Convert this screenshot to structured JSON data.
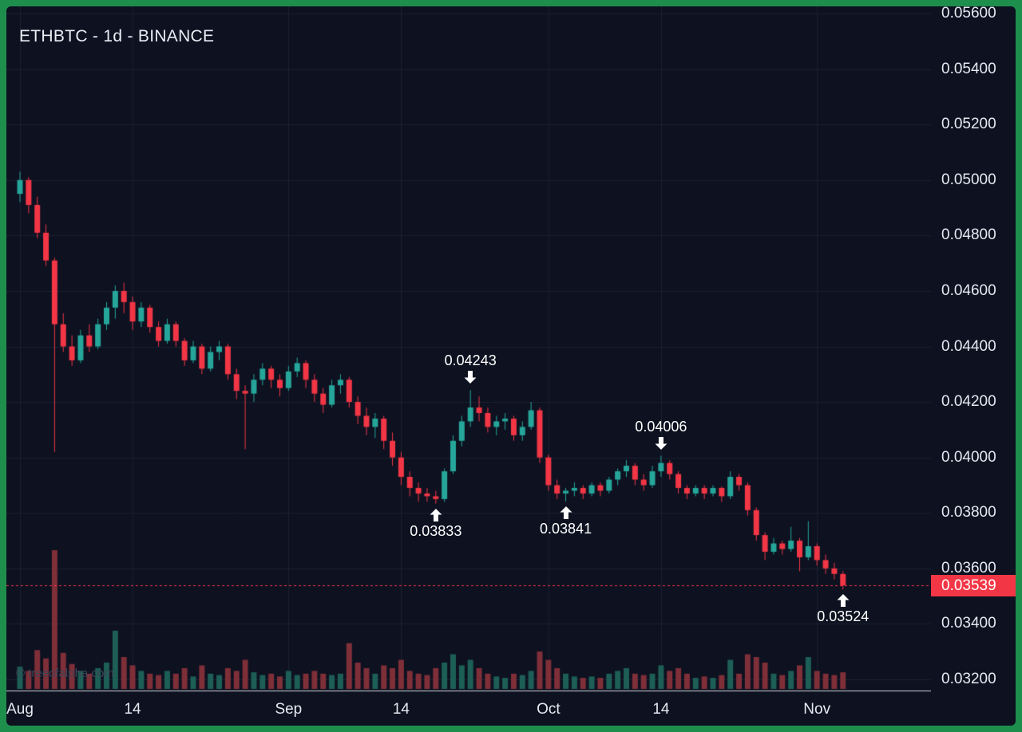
{
  "frame": {
    "border_color": "#1e8e4d",
    "background": "#0d1120"
  },
  "header": {
    "title": "ETHBTC - 1d - BINANCE"
  },
  "watermark": "© treeofalpha.com",
  "chart_data": {
    "type": "candlestick",
    "title": "ETHBTC - 1d - BINANCE",
    "symbol": "ETHBTC",
    "interval": "1d",
    "exchange": "BINANCE",
    "legend_position": "top-left",
    "grid": true,
    "y_axis_min": 0.032,
    "y_axis_max": 0.056,
    "y_ticks": [
      "0.05600",
      "0.05400",
      "0.05200",
      "0.05000",
      "0.04800",
      "0.04600",
      "0.04400",
      "0.04200",
      "0.04000",
      "0.03800",
      "0.03600",
      "0.03400",
      "0.03200"
    ],
    "x_ticks": [
      {
        "label": "Aug",
        "day": 0
      },
      {
        "label": "14",
        "day": 13
      },
      {
        "label": "Sep",
        "day": 31
      },
      {
        "label": "14",
        "day": 44
      },
      {
        "label": "Oct",
        "day": 61
      },
      {
        "label": "14",
        "day": 74
      },
      {
        "label": "Nov",
        "day": 92
      }
    ],
    "last_price": "0.03539",
    "last_price_value": 0.03539,
    "candle_format": "[open,high,low,close]",
    "candles": [
      [
        0.0495,
        0.0503,
        0.0492,
        0.05
      ],
      [
        0.05,
        0.0501,
        0.0488,
        0.0491
      ],
      [
        0.0491,
        0.0494,
        0.0479,
        0.0481
      ],
      [
        0.0481,
        0.0484,
        0.0469,
        0.0471
      ],
      [
        0.0471,
        0.0472,
        0.0402,
        0.0448
      ],
      [
        0.0448,
        0.0452,
        0.0438,
        0.044
      ],
      [
        0.044,
        0.0444,
        0.0433,
        0.0435
      ],
      [
        0.0435,
        0.0446,
        0.0434,
        0.0444
      ],
      [
        0.0444,
        0.0448,
        0.0438,
        0.044
      ],
      [
        0.044,
        0.045,
        0.0439,
        0.0448
      ],
      [
        0.0448,
        0.0456,
        0.0446,
        0.0454
      ],
      [
        0.0454,
        0.0462,
        0.045,
        0.046
      ],
      [
        0.046,
        0.0463,
        0.0452,
        0.0456
      ],
      [
        0.0456,
        0.0458,
        0.0446,
        0.0449
      ],
      [
        0.0449,
        0.0456,
        0.0447,
        0.0454
      ],
      [
        0.0454,
        0.0455,
        0.0445,
        0.0447
      ],
      [
        0.0447,
        0.0449,
        0.044,
        0.0442
      ],
      [
        0.0442,
        0.045,
        0.0441,
        0.0448
      ],
      [
        0.0448,
        0.0449,
        0.044,
        0.0442
      ],
      [
        0.0442,
        0.0443,
        0.0433,
        0.0435
      ],
      [
        0.0435,
        0.0442,
        0.0434,
        0.044
      ],
      [
        0.044,
        0.0441,
        0.043,
        0.0432
      ],
      [
        0.0432,
        0.044,
        0.0431,
        0.0438
      ],
      [
        0.0438,
        0.0442,
        0.0435,
        0.044
      ],
      [
        0.044,
        0.0441,
        0.0428,
        0.043
      ],
      [
        0.043,
        0.0432,
        0.0421,
        0.0424
      ],
      [
        0.0424,
        0.0426,
        0.0403,
        0.0423
      ],
      [
        0.0423,
        0.043,
        0.042,
        0.0428
      ],
      [
        0.0428,
        0.0434,
        0.0426,
        0.0432
      ],
      [
        0.0432,
        0.0433,
        0.0425,
        0.0428
      ],
      [
        0.0428,
        0.043,
        0.0422,
        0.0425
      ],
      [
        0.0425,
        0.0433,
        0.0424,
        0.0431
      ],
      [
        0.0431,
        0.0436,
        0.0429,
        0.0434
      ],
      [
        0.0434,
        0.0435,
        0.0425,
        0.0428
      ],
      [
        0.0428,
        0.043,
        0.042,
        0.0423
      ],
      [
        0.0423,
        0.0425,
        0.0416,
        0.0419
      ],
      [
        0.0419,
        0.0428,
        0.0418,
        0.0426
      ],
      [
        0.0426,
        0.043,
        0.0423,
        0.0428
      ],
      [
        0.0428,
        0.0429,
        0.0418,
        0.042
      ],
      [
        0.042,
        0.0422,
        0.0412,
        0.0415
      ],
      [
        0.0415,
        0.0418,
        0.0408,
        0.0411
      ],
      [
        0.0411,
        0.0416,
        0.0407,
        0.0414
      ],
      [
        0.0414,
        0.0415,
        0.0403,
        0.0406
      ],
      [
        0.0406,
        0.0409,
        0.0397,
        0.04
      ],
      [
        0.04,
        0.0402,
        0.039,
        0.0393
      ],
      [
        0.0393,
        0.0395,
        0.0386,
        0.0389
      ],
      [
        0.0389,
        0.0391,
        0.0384,
        0.0387
      ],
      [
        0.0387,
        0.0389,
        0.0384,
        0.0386
      ],
      [
        0.0386,
        0.0388,
        0.03833,
        0.0385
      ],
      [
        0.0385,
        0.0396,
        0.0384,
        0.0395
      ],
      [
        0.0395,
        0.0408,
        0.0394,
        0.0406
      ],
      [
        0.0406,
        0.0415,
        0.0404,
        0.0413
      ],
      [
        0.0413,
        0.04243,
        0.0411,
        0.0418
      ],
      [
        0.0418,
        0.0422,
        0.0413,
        0.0416
      ],
      [
        0.0416,
        0.0418,
        0.0409,
        0.0411
      ],
      [
        0.0411,
        0.0415,
        0.0408,
        0.0413
      ],
      [
        0.0413,
        0.0416,
        0.041,
        0.0414
      ],
      [
        0.0414,
        0.0415,
        0.0406,
        0.0408
      ],
      [
        0.0408,
        0.0413,
        0.0406,
        0.0411
      ],
      [
        0.0411,
        0.042,
        0.041,
        0.0417
      ],
      [
        0.0417,
        0.0418,
        0.0398,
        0.04
      ],
      [
        0.04,
        0.0401,
        0.0388,
        0.039
      ],
      [
        0.039,
        0.0392,
        0.0385,
        0.0387
      ],
      [
        0.0387,
        0.0389,
        0.03841,
        0.0388
      ],
      [
        0.0388,
        0.0391,
        0.0386,
        0.0389
      ],
      [
        0.0389,
        0.039,
        0.0385,
        0.0387
      ],
      [
        0.0387,
        0.0391,
        0.0386,
        0.039
      ],
      [
        0.039,
        0.0391,
        0.0386,
        0.0388
      ],
      [
        0.0388,
        0.0393,
        0.0387,
        0.0392
      ],
      [
        0.0392,
        0.0396,
        0.039,
        0.0395
      ],
      [
        0.0395,
        0.0399,
        0.0393,
        0.0397
      ],
      [
        0.0397,
        0.0398,
        0.039,
        0.0392
      ],
      [
        0.0392,
        0.0394,
        0.0388,
        0.039
      ],
      [
        0.039,
        0.0397,
        0.0389,
        0.0395
      ],
      [
        0.0395,
        0.04006,
        0.0393,
        0.0398
      ],
      [
        0.0398,
        0.0399,
        0.0392,
        0.0394
      ],
      [
        0.0394,
        0.0395,
        0.0387,
        0.0389
      ],
      [
        0.0389,
        0.039,
        0.0385,
        0.0387
      ],
      [
        0.0387,
        0.039,
        0.0386,
        0.0389
      ],
      [
        0.0389,
        0.039,
        0.0385,
        0.0387
      ],
      [
        0.0387,
        0.039,
        0.0386,
        0.0389
      ],
      [
        0.0389,
        0.03895,
        0.0384,
        0.0386
      ],
      [
        0.0386,
        0.0395,
        0.0385,
        0.0393
      ],
      [
        0.0393,
        0.0394,
        0.0388,
        0.039
      ],
      [
        0.039,
        0.0391,
        0.0379,
        0.0381
      ],
      [
        0.0381,
        0.0382,
        0.037,
        0.0372
      ],
      [
        0.0372,
        0.0373,
        0.0363,
        0.0366
      ],
      [
        0.0366,
        0.0371,
        0.0365,
        0.0369
      ],
      [
        0.0369,
        0.037,
        0.0365,
        0.0367
      ],
      [
        0.0367,
        0.0375,
        0.0366,
        0.037
      ],
      [
        0.037,
        0.0371,
        0.0359,
        0.0364
      ],
      [
        0.0364,
        0.0377,
        0.0363,
        0.0368
      ],
      [
        0.0368,
        0.0369,
        0.0361,
        0.0363
      ],
      [
        0.0363,
        0.0365,
        0.0358,
        0.036
      ],
      [
        0.036,
        0.0362,
        0.0356,
        0.0358
      ],
      [
        0.0358,
        0.0359,
        0.03524,
        0.03539
      ]
    ],
    "volumes": [
      16,
      13,
      28,
      22,
      100,
      26,
      18,
      13,
      11,
      15,
      19,
      42,
      23,
      17,
      13,
      11,
      10,
      13,
      11,
      15,
      9,
      17,
      11,
      10,
      15,
      13,
      21,
      12,
      10,
      11,
      9,
      13,
      10,
      11,
      13,
      11,
      10,
      11,
      33,
      19,
      15,
      11,
      17,
      15,
      21,
      13,
      11,
      10,
      15,
      19,
      25,
      17,
      21,
      15,
      11,
      9,
      8,
      11,
      10,
      13,
      27,
      21,
      15,
      11,
      9,
      8,
      9,
      8,
      11,
      13,
      15,
      11,
      10,
      11,
      17,
      13,
      15,
      11,
      8,
      9,
      8,
      10,
      21,
      11,
      25,
      23,
      19,
      11,
      10,
      13,
      17,
      23,
      13,
      11,
      10,
      12
    ],
    "annotations": [
      {
        "text": "0.04243",
        "day": 52,
        "price": 0.04243,
        "direction": "down"
      },
      {
        "text": "0.03833",
        "day": 48,
        "price": 0.03833,
        "direction": "up"
      },
      {
        "text": "0.03841",
        "day": 63,
        "price": 0.03841,
        "direction": "up"
      },
      {
        "text": "0.04006",
        "day": 74,
        "price": 0.04006,
        "direction": "down"
      },
      {
        "text": "0.03524",
        "day": 95,
        "price": 0.03524,
        "direction": "up"
      }
    ],
    "colors": {
      "up": "#26a69a",
      "down": "#f23645",
      "vol_up": "#1d5f56",
      "vol_down": "#7f2f38",
      "grid": "#1c2232",
      "price_line": "#f23645",
      "price_tag_bg": "#f23645",
      "axis_text": "#e6e9f0",
      "annotation_text": "#ffffff",
      "separator": "#d1d4dc"
    }
  }
}
